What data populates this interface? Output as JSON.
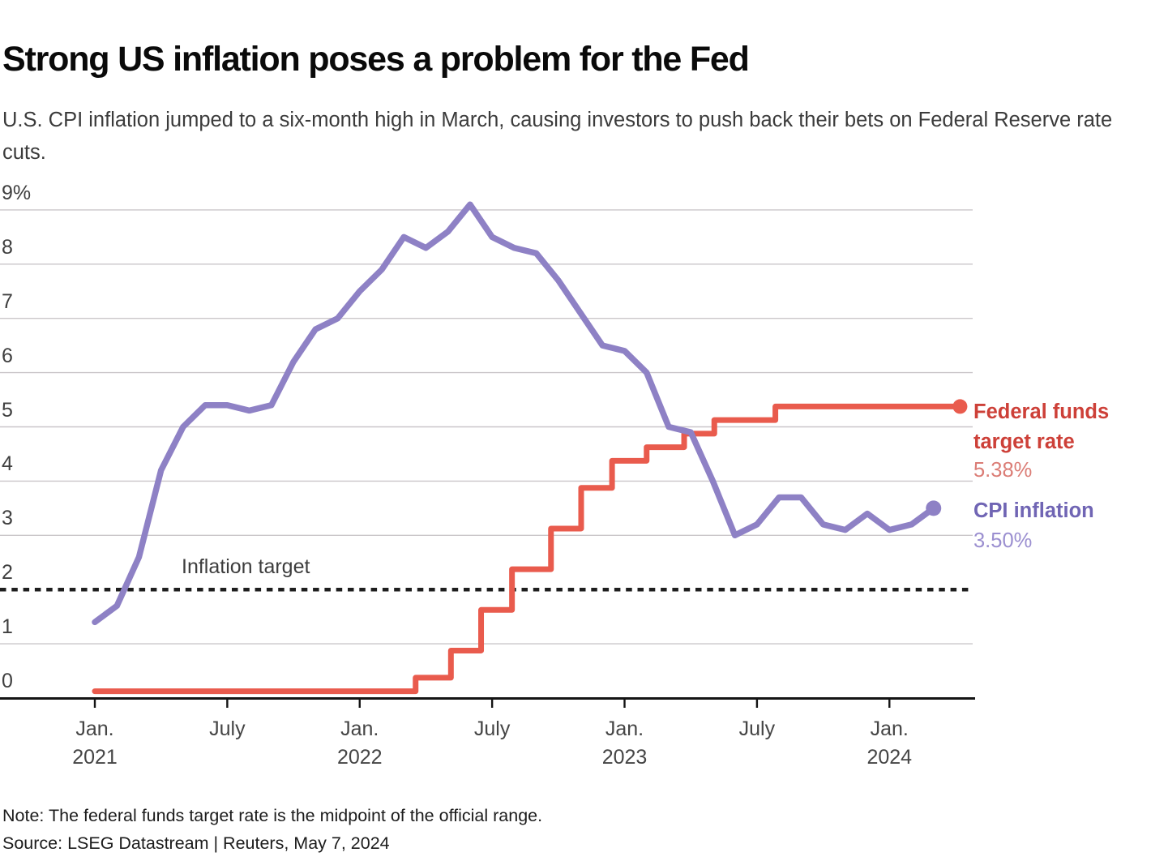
{
  "header": {
    "title": "Strong US inflation poses a problem for the Fed",
    "subtitle": "U.S. CPI inflation jumped to a six-month high in March, causing investors to push back their bets on Federal Reserve rate cuts."
  },
  "annotation": {
    "inflation_target_label": "Inflation target"
  },
  "legend": {
    "fed_label": "Federal funds target rate",
    "fed_value": "5.38%",
    "cpi_label": "CPI inflation",
    "cpi_value": "3.50%"
  },
  "footer": {
    "note": "Note: The federal funds target rate is the midpoint of the official range.",
    "source": "Source: LSEG Datastream | Reuters, May 7, 2024"
  },
  "colors": {
    "fed_line": "#e95b4d",
    "fed_label_text": "#cd4038",
    "fed_value_text": "#db7d76",
    "cpi_line": "#8e81c5",
    "cpi_label_text": "#7065b4",
    "cpi_value_text": "#9b8fd0",
    "gridline": "#cac6c9",
    "target_line": "#1e1e1e",
    "axis": "#141414"
  },
  "chart_data": {
    "type": "line",
    "title": "Strong US inflation poses a problem for the Fed",
    "y_axis": {
      "min": 0,
      "max": 9,
      "unit": "%",
      "labels": [
        "9%",
        "8",
        "7",
        "6",
        "5",
        "4",
        "3",
        "2",
        "1",
        "0"
      ],
      "gridline_values": [
        9,
        8,
        7,
        6,
        5,
        4,
        3,
        1
      ]
    },
    "x_axis": {
      "ticks": [
        {
          "month_index": 0,
          "line1": "Jan.",
          "line2": "2021"
        },
        {
          "month_index": 6,
          "line1": "July",
          "line2": ""
        },
        {
          "month_index": 12,
          "line1": "Jan.",
          "line2": "2022"
        },
        {
          "month_index": 18,
          "line1": "July",
          "line2": ""
        },
        {
          "month_index": 24,
          "line1": "Jan.",
          "line2": "2023"
        },
        {
          "month_index": 30,
          "line1": "July",
          "line2": ""
        },
        {
          "month_index": 36,
          "line1": "Jan.",
          "line2": "2024"
        }
      ]
    },
    "inflation_target_value": 2,
    "series": [
      {
        "name": "CPI inflation",
        "style": "monthly_line",
        "start_month": "2021-01",
        "end_month": "2024-03",
        "last_value_label": "3.50%",
        "values": [
          1.4,
          1.7,
          2.6,
          4.2,
          5.0,
          5.4,
          5.4,
          5.3,
          5.4,
          6.2,
          6.8,
          7.0,
          7.5,
          7.9,
          8.5,
          8.3,
          8.6,
          9.1,
          8.5,
          8.3,
          8.2,
          7.7,
          7.1,
          6.5,
          6.4,
          6.0,
          5.0,
          4.9,
          4.0,
          3.0,
          3.2,
          3.7,
          3.7,
          3.2,
          3.1,
          3.4,
          3.1,
          3.2,
          3.5
        ]
      },
      {
        "name": "Federal funds target rate",
        "style": "step_line",
        "start_month": "2021-01",
        "end_month": "2024-04",
        "last_value_label": "5.38%",
        "initial_rate": 0.125,
        "rate_changes": [
          {
            "date": "2022-03-17",
            "rate": 0.375
          },
          {
            "date": "2022-05-05",
            "rate": 0.875
          },
          {
            "date": "2022-06-16",
            "rate": 1.625
          },
          {
            "date": "2022-07-28",
            "rate": 2.375
          },
          {
            "date": "2022-09-21",
            "rate": 3.125
          },
          {
            "date": "2022-11-02",
            "rate": 3.875
          },
          {
            "date": "2022-12-14",
            "rate": 4.375
          },
          {
            "date": "2023-02-01",
            "rate": 4.625
          },
          {
            "date": "2023-03-22",
            "rate": 4.875
          },
          {
            "date": "2023-05-03",
            "rate": 5.125
          },
          {
            "date": "2023-07-26",
            "rate": 5.375
          }
        ]
      }
    ]
  }
}
